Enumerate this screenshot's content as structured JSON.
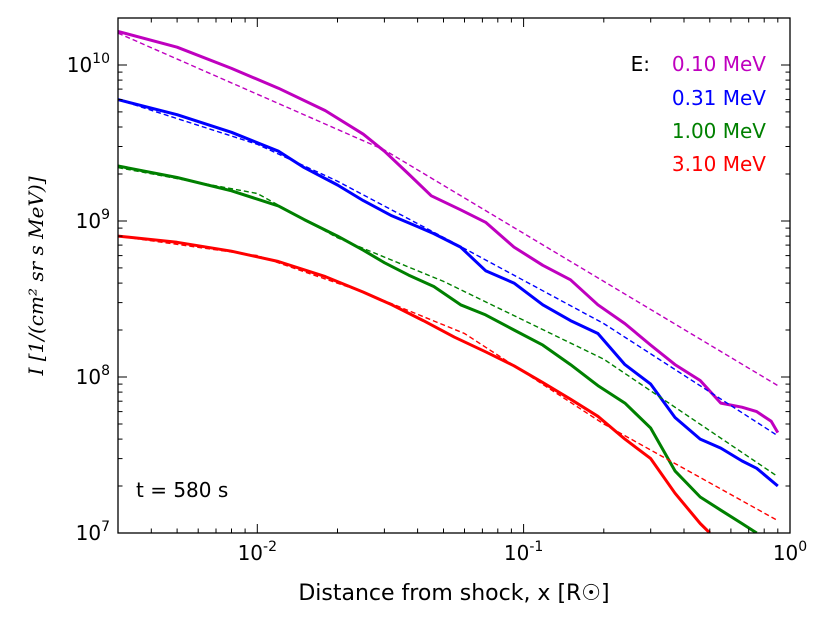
{
  "chart_data": {
    "type": "line",
    "xscale": "log",
    "yscale": "log",
    "xlim": [
      0.003,
      1.0
    ],
    "ylim": [
      10000000,
      20000000000
    ],
    "xlabel": "Distance from shock, x [R☉]",
    "ylabel": "I [1/(cm² sr s MeV)]",
    "xticks": [
      0.01,
      0.1,
      1.0
    ],
    "xtick_labels": [
      {
        "base": "10",
        "exp": "-2"
      },
      {
        "base": "10",
        "exp": "-1"
      },
      {
        "base": "10",
        "exp": "0"
      }
    ],
    "yticks": [
      10000000,
      100000000,
      1000000000,
      10000000000
    ],
    "ytick_labels": [
      {
        "base": "10",
        "exp": "7"
      },
      {
        "base": "10",
        "exp": "8"
      },
      {
        "base": "10",
        "exp": "9"
      },
      {
        "base": "10",
        "exp": "10"
      }
    ],
    "annotation": "t = 580 s",
    "legend_title": "E:",
    "legend_position": "top-right",
    "grid": false,
    "series": [
      {
        "name": "0.10 MeV",
        "color": "#bf00bf",
        "x": [
          0.003,
          0.005,
          0.008,
          0.012,
          0.018,
          0.025,
          0.03,
          0.037,
          0.045,
          0.058,
          0.072,
          0.092,
          0.118,
          0.15,
          0.19,
          0.24,
          0.3,
          0.37,
          0.46,
          0.55,
          0.66,
          0.75,
          0.85,
          0.9
        ],
        "y": [
          16400000000,
          13000000000,
          9500000000,
          7100000000,
          5100000000,
          3600000000,
          2800000000,
          2000000000,
          1450000000,
          1180000000,
          980000000,
          680000000,
          520000000,
          420000000,
          290000000,
          220000000,
          160000000,
          120000000,
          95000000,
          68000000,
          64000000,
          60000000,
          52000000,
          44000000
        ],
        "fit": {
          "x": [
            0.003,
            0.03,
            0.9
          ],
          "y": [
            16000000000,
            2850000000,
            88000000
          ]
        }
      },
      {
        "name": "0.31 MeV",
        "color": "#0000ff",
        "x": [
          0.003,
          0.005,
          0.008,
          0.012,
          0.015,
          0.02,
          0.025,
          0.032,
          0.04,
          0.046,
          0.058,
          0.072,
          0.092,
          0.118,
          0.15,
          0.19,
          0.24,
          0.3,
          0.37,
          0.46,
          0.55,
          0.66,
          0.75,
          0.9
        ],
        "y": [
          6000000000,
          4800000000,
          3700000000,
          2800000000,
          2200000000,
          1700000000,
          1350000000,
          1080000000,
          920000000,
          830000000,
          680000000,
          480000000,
          400000000,
          290000000,
          230000000,
          190000000,
          120000000,
          90000000,
          55000000,
          40000000,
          35000000,
          29000000,
          26000000,
          20000000
        ],
        "fit": {
          "x": [
            0.003,
            0.01,
            0.02,
            0.055,
            0.2,
            0.9
          ],
          "y": [
            6000000000,
            3100000000,
            1800000000,
            720000000,
            220000000,
            42000000
          ]
        }
      },
      {
        "name": "1.00 MeV",
        "color": "#008000",
        "x": [
          0.003,
          0.005,
          0.008,
          0.012,
          0.015,
          0.02,
          0.025,
          0.03,
          0.037,
          0.046,
          0.058,
          0.072,
          0.092,
          0.118,
          0.15,
          0.19,
          0.24,
          0.3,
          0.37,
          0.46,
          0.55,
          0.66,
          0.75
        ],
        "y": [
          2250000000,
          1900000000,
          1560000000,
          1250000000,
          1020000000,
          800000000,
          650000000,
          540000000,
          450000000,
          380000000,
          290000000,
          250000000,
          200000000,
          160000000,
          120000000,
          88000000,
          68000000,
          47000000,
          25000000,
          17000000,
          14000000,
          11500000,
          10000000
        ],
        "fit": {
          "x": [
            0.003,
            0.01,
            0.02,
            0.05,
            0.2,
            0.9
          ],
          "y": [
            2200000000,
            1500000000,
            780000000,
            410000000,
            130000000,
            23000000
          ]
        }
      },
      {
        "name": "3.10 MeV",
        "color": "#ff0000",
        "x": [
          0.003,
          0.005,
          0.008,
          0.012,
          0.018,
          0.025,
          0.032,
          0.042,
          0.055,
          0.072,
          0.092,
          0.118,
          0.15,
          0.19,
          0.24,
          0.3,
          0.37,
          0.46,
          0.5
        ],
        "y": [
          800000000,
          730000000,
          640000000,
          550000000,
          440000000,
          350000000,
          290000000,
          230000000,
          180000000,
          145000000,
          118000000,
          92000000,
          72000000,
          56000000,
          40000000,
          30000000,
          18000000,
          11500000,
          10000000
        ],
        "fit": {
          "x": [
            0.003,
            0.01,
            0.025,
            0.06,
            0.2,
            0.9
          ],
          "y": [
            800000000,
            600000000,
            350000000,
            190000000,
            50000000,
            12000000
          ]
        }
      }
    ]
  }
}
